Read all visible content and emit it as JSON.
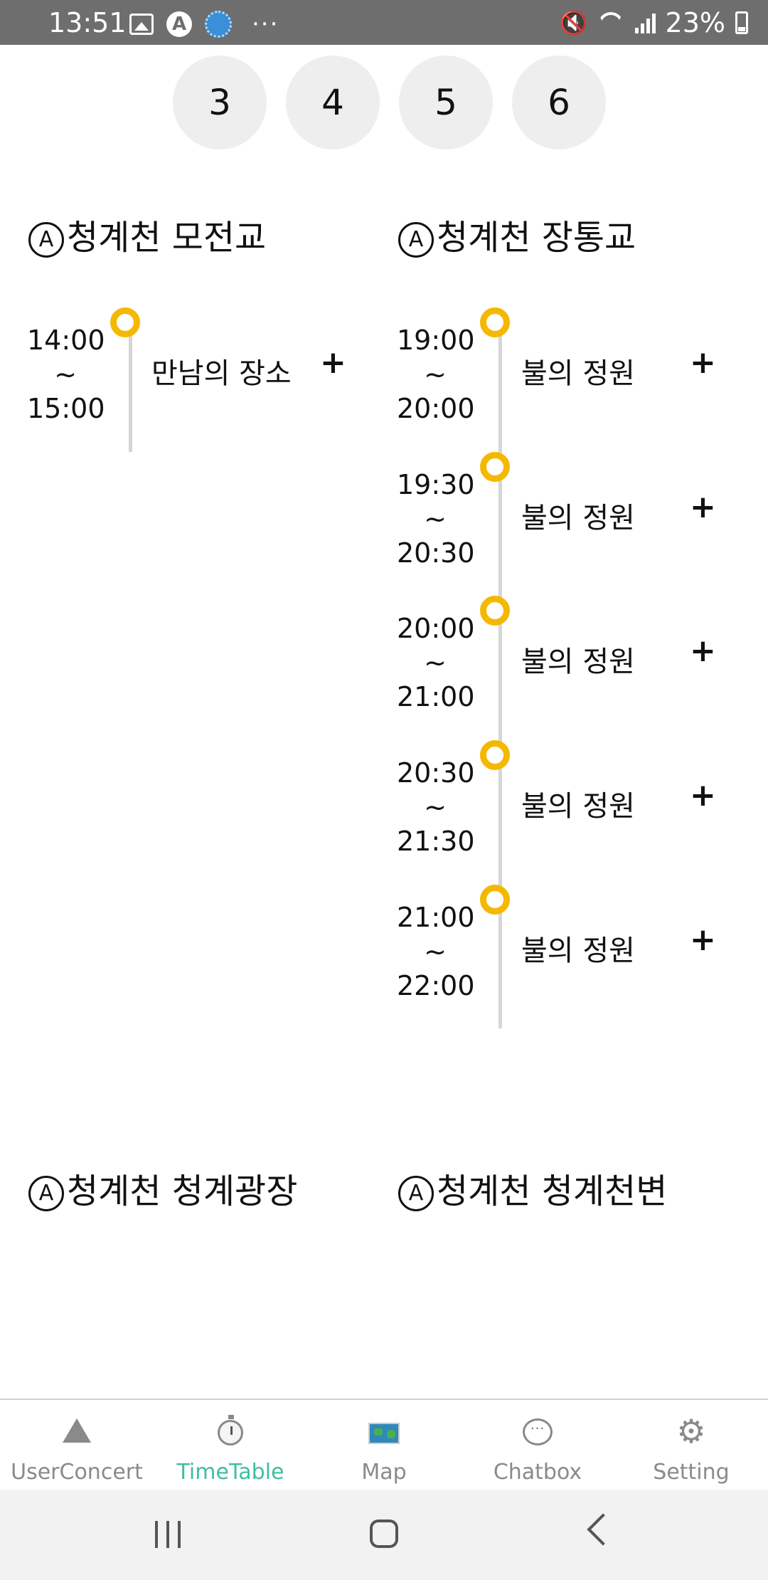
{
  "status_bar": {
    "time": "13:51",
    "a_icon": "A",
    "dots": "···",
    "mute_icon": "🔇",
    "battery": "23%",
    "icons": [
      "image-icon",
      "a-circle-icon",
      "mascot-icon",
      "more-icon",
      "mute-icon",
      "wifi-icon",
      "signal-icon",
      "battery-icon"
    ]
  },
  "days": [
    "3",
    "4",
    "5",
    "6"
  ],
  "stages": [
    {
      "prefix": "A",
      "name": "청계천 모전교",
      "events": [
        {
          "start": "14:00",
          "sep": "~",
          "end": "15:00",
          "title": "만남의 장소",
          "add": "+"
        }
      ]
    },
    {
      "prefix": "A",
      "name": "청계천 장통교",
      "events": [
        {
          "start": "19:00",
          "sep": "~",
          "end": "20:00",
          "title": "불의 정원",
          "add": "+"
        },
        {
          "start": "19:30",
          "sep": "~",
          "end": "20:30",
          "title": "불의 정원",
          "add": "+"
        },
        {
          "start": "20:00",
          "sep": "~",
          "end": "21:00",
          "title": "불의 정원",
          "add": "+"
        },
        {
          "start": "20:30",
          "sep": "~",
          "end": "21:30",
          "title": "불의 정원",
          "add": "+"
        },
        {
          "start": "21:00",
          "sep": "~",
          "end": "22:00",
          "title": "불의 정원",
          "add": "+"
        }
      ]
    },
    {
      "prefix": "A",
      "name": "청계천 청계광장",
      "events": []
    },
    {
      "prefix": "A",
      "name": "청계천 청계천변",
      "events": []
    }
  ],
  "bottom_nav": [
    {
      "label": "UserConcert",
      "icon": "triangle-icon",
      "active": false
    },
    {
      "label": "TimeTable",
      "icon": "stopwatch-icon",
      "active": true
    },
    {
      "label": "Map",
      "icon": "map-icon",
      "active": false
    },
    {
      "label": "Chatbox",
      "icon": "chat-bubble-icon",
      "active": false
    },
    {
      "label": "Setting",
      "icon": "gear-icon",
      "active": false
    }
  ],
  "nav_glyphs": {
    "chat": "···",
    "gear": "⚙"
  },
  "accent_color": "#f5b800",
  "active_color": "#3fbfa0"
}
